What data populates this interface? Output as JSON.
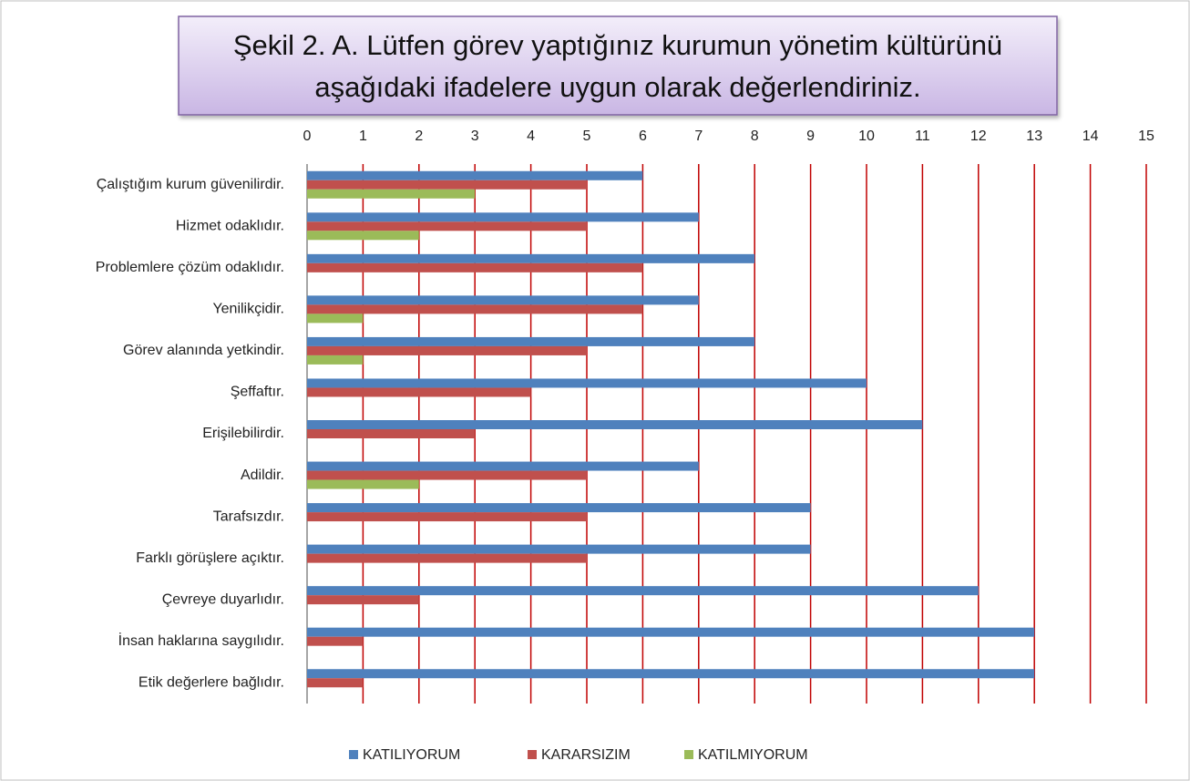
{
  "chart_data": {
    "type": "bar",
    "orientation": "horizontal",
    "title": [
      "Şekil 2. A. Lütfen görev yaptığınız kurumun yönetim kültürünü",
      "aşağıdaki ifadelere uygun olarak değerlendiriniz."
    ],
    "categories": [
      "Çalıştığım kurum güvenilirdir.",
      "Hizmet odaklıdır.",
      "Problemlere çözüm odaklıdır.",
      "Yenilikçidir.",
      "Görev alanında yetkindir.",
      "Şeffaftır.",
      "Erişilebilirdir.",
      "Adildir.",
      "Tarafsızdır.",
      "Farklı görüşlere açıktır.",
      "Çevreye duyarlıdır.",
      "İnsan haklarına saygılıdır.",
      "Etik değerlere bağlıdır."
    ],
    "series": [
      {
        "name": "KATILIYORUM",
        "color": "#4f81bd",
        "values": [
          6,
          7,
          8,
          7,
          8,
          10,
          11,
          7,
          9,
          9,
          12,
          13,
          13
        ]
      },
      {
        "name": "KARARSIZIM",
        "color": "#c0504d",
        "values": [
          5,
          5,
          6,
          6,
          5,
          4,
          3,
          5,
          5,
          5,
          2,
          1,
          1
        ]
      },
      {
        "name": "KATILMIYORUM",
        "color": "#9bbb59",
        "values": [
          3,
          2,
          0,
          1,
          1,
          0,
          0,
          2,
          0,
          0,
          0,
          0,
          0
        ]
      }
    ],
    "xlim": [
      0,
      15
    ],
    "xticks": [
      0,
      1,
      2,
      3,
      4,
      5,
      6,
      7,
      8,
      9,
      10,
      11,
      12,
      13,
      14,
      15
    ],
    "xaxis_position": "top",
    "grid": true,
    "grid_color": "#c00000",
    "legend": "bottom"
  }
}
